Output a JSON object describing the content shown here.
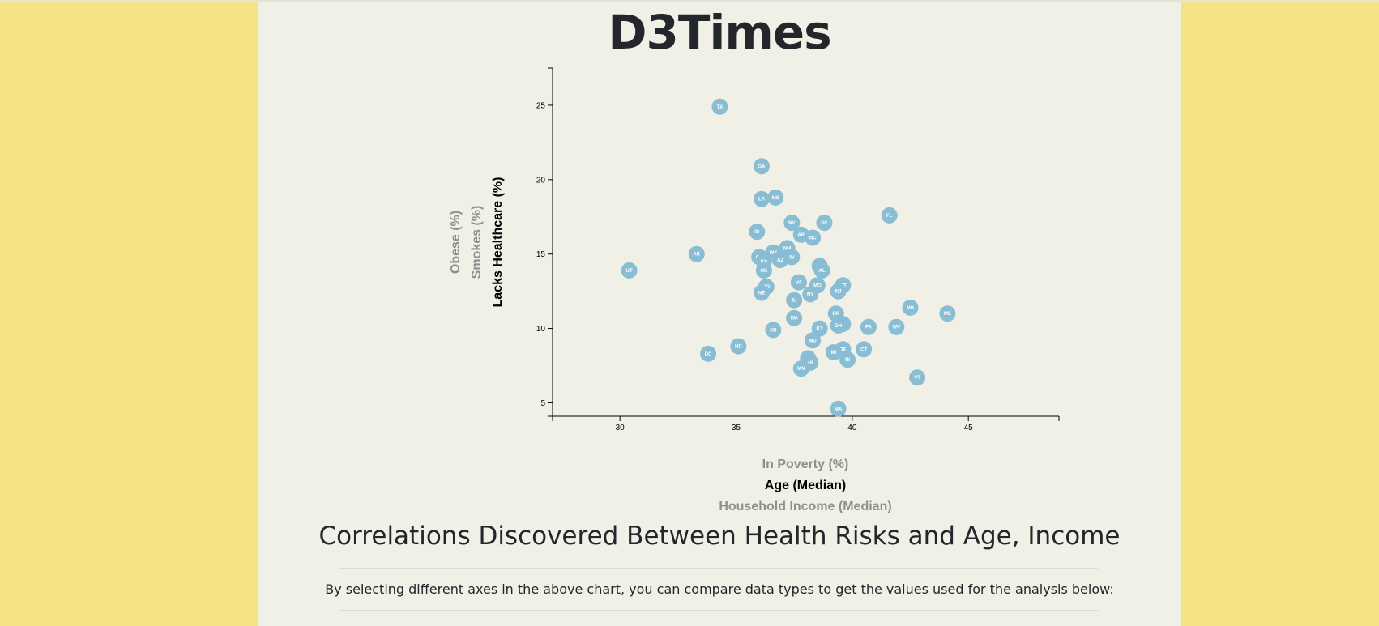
{
  "header": {
    "title": "D3Times"
  },
  "chart_data": {
    "type": "scatter",
    "x_axis_options": [
      {
        "label": "In Poverty (%)",
        "active": false
      },
      {
        "label": "Age (Median)",
        "active": true
      },
      {
        "label": "Household Income (Median)",
        "active": false
      }
    ],
    "y_axis_options": [
      {
        "label": "Obese (%)",
        "active": false
      },
      {
        "label": "Smokes (%)",
        "active": false
      },
      {
        "label": "Lacks Healthcare (%)",
        "active": true
      }
    ],
    "xlabel": "Age (Median)",
    "ylabel": "Lacks Healthcare (%)",
    "xlim": [
      27.1,
      48.9
    ],
    "ylim": [
      4.1,
      27.5
    ],
    "x_ticks": [
      30,
      35,
      40,
      45
    ],
    "y_ticks": [
      5,
      10,
      15,
      20,
      25
    ],
    "grid": false,
    "point_color": "#89bdd3",
    "points": [
      {
        "abbr": "TX",
        "x": 34.3,
        "y": 24.9
      },
      {
        "abbr": "GA",
        "x": 36.1,
        "y": 20.9
      },
      {
        "abbr": "LA",
        "x": 36.1,
        "y": 18.7
      },
      {
        "abbr": "MS",
        "x": 36.7,
        "y": 18.8
      },
      {
        "abbr": "FL",
        "x": 41.6,
        "y": 17.6
      },
      {
        "abbr": "NV",
        "x": 37.4,
        "y": 17.1
      },
      {
        "abbr": "SC",
        "x": 38.8,
        "y": 17.1
      },
      {
        "abbr": "ID",
        "x": 35.9,
        "y": 16.5
      },
      {
        "abbr": "AR",
        "x": 37.8,
        "y": 16.3
      },
      {
        "abbr": "NC",
        "x": 38.3,
        "y": 16.1
      },
      {
        "abbr": "NM",
        "x": 37.2,
        "y": 15.4
      },
      {
        "abbr": "WY",
        "x": 36.6,
        "y": 15.1
      },
      {
        "abbr": "AK",
        "x": 33.3,
        "y": 15.0
      },
      {
        "abbr": "CA",
        "x": 36.0,
        "y": 14.8
      },
      {
        "abbr": "IN",
        "x": 37.4,
        "y": 14.8
      },
      {
        "abbr": "AZ",
        "x": 36.9,
        "y": 14.6
      },
      {
        "abbr": "KS",
        "x": 36.2,
        "y": 14.5
      },
      {
        "abbr": "TN",
        "x": 38.6,
        "y": 14.2
      },
      {
        "abbr": "AL",
        "x": 38.7,
        "y": 13.9
      },
      {
        "abbr": "UT",
        "x": 30.4,
        "y": 13.9
      },
      {
        "abbr": "OK",
        "x": 36.2,
        "y": 13.9
      },
      {
        "abbr": "VA",
        "x": 37.7,
        "y": 13.1
      },
      {
        "abbr": "MO",
        "x": 38.5,
        "y": 12.9
      },
      {
        "abbr": "MT",
        "x": 39.6,
        "y": 12.9
      },
      {
        "abbr": "CO",
        "x": 36.3,
        "y": 12.8
      },
      {
        "abbr": "NJ",
        "x": 39.4,
        "y": 12.5
      },
      {
        "abbr": "NE",
        "x": 36.1,
        "y": 12.4
      },
      {
        "abbr": "NY",
        "x": 38.2,
        "y": 12.3
      },
      {
        "abbr": "IL",
        "x": 37.5,
        "y": 11.9
      },
      {
        "abbr": "NH",
        "x": 42.5,
        "y": 11.4
      },
      {
        "abbr": "OR",
        "x": 39.3,
        "y": 11.0
      },
      {
        "abbr": "ME",
        "x": 44.1,
        "y": 11.0
      },
      {
        "abbr": "WA",
        "x": 37.5,
        "y": 10.7
      },
      {
        "abbr": "WI",
        "x": 39.6,
        "y": 10.3
      },
      {
        "abbr": "OH",
        "x": 39.4,
        "y": 10.2
      },
      {
        "abbr": "PA",
        "x": 40.7,
        "y": 10.1
      },
      {
        "abbr": "WV",
        "x": 41.9,
        "y": 10.1
      },
      {
        "abbr": "KY",
        "x": 38.6,
        "y": 10.0
      },
      {
        "abbr": "SD",
        "x": 36.6,
        "y": 9.9
      },
      {
        "abbr": "MD",
        "x": 38.3,
        "y": 9.2
      },
      {
        "abbr": "ND",
        "x": 35.1,
        "y": 8.8
      },
      {
        "abbr": "DE",
        "x": 39.6,
        "y": 8.6
      },
      {
        "abbr": "CT",
        "x": 40.5,
        "y": 8.6
      },
      {
        "abbr": "MI",
        "x": 39.2,
        "y": 8.4
      },
      {
        "abbr": "DC",
        "x": 33.8,
        "y": 8.3
      },
      {
        "abbr": "RI",
        "x": 39.8,
        "y": 7.9
      },
      {
        "abbr": "IA",
        "x": 38.1,
        "y": 8.0
      },
      {
        "abbr": "HI",
        "x": 38.2,
        "y": 7.7
      },
      {
        "abbr": "MN",
        "x": 37.8,
        "y": 7.3
      },
      {
        "abbr": "VT",
        "x": 42.8,
        "y": 6.7
      },
      {
        "abbr": "MA",
        "x": 39.4,
        "y": 4.6
      }
    ]
  },
  "analysis": {
    "headline": "Correlations Discovered Between Health Risks and Age, Income",
    "intro": "By selecting different axes in the above chart, you can compare data types to get the values used for the analysis below:"
  }
}
